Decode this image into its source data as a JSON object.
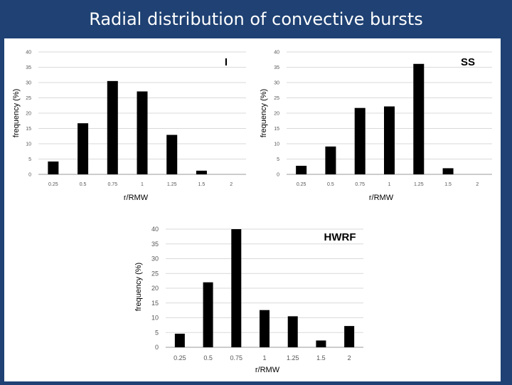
{
  "slide": {
    "title": "Radial distribution of convective bursts"
  },
  "chart_data": [
    {
      "type": "bar",
      "title": "I",
      "xlabel": "r/RMW",
      "ylabel": "frequency (%)",
      "categories": [
        "0.25",
        "0.5",
        "0.75",
        "1",
        "1.25",
        "1.5",
        "2"
      ],
      "values": [
        4.2,
        16.7,
        30.5,
        27.1,
        12.9,
        1.2,
        0
      ],
      "ylim": [
        0,
        40
      ],
      "yticks": [
        "0",
        "5",
        "10",
        "15",
        "20",
        "25",
        "30",
        "35",
        "40"
      ],
      "grid": true,
      "bar_color": "#000000"
    },
    {
      "type": "bar",
      "title": "SS",
      "xlabel": "r/RMW",
      "ylabel": "frequency (%)",
      "categories": [
        "0.25",
        "0.5",
        "0.75",
        "1",
        "1.25",
        "1.5",
        "2"
      ],
      "values": [
        2.8,
        9.1,
        21.7,
        22.2,
        36.1,
        2.0,
        0
      ],
      "ylim": [
        0,
        40
      ],
      "yticks": [
        "0",
        "5",
        "10",
        "15",
        "20",
        "25",
        "30",
        "35",
        "40"
      ],
      "grid": true,
      "bar_color": "#000000"
    },
    {
      "type": "bar",
      "title": "HWRF",
      "xlabel": "r/RMW",
      "ylabel": "frequency (%)",
      "categories": [
        "0.25",
        "0.5",
        "0.75",
        "1",
        "1.25",
        "1.5",
        "2"
      ],
      "values": [
        4.6,
        22.0,
        40.0,
        12.6,
        10.5,
        2.3,
        7.2
      ],
      "ylim": [
        0,
        40
      ],
      "yticks": [
        "0",
        "5",
        "10",
        "15",
        "20",
        "25",
        "30",
        "35",
        "40"
      ],
      "grid": true,
      "bar_color": "#000000"
    }
  ]
}
